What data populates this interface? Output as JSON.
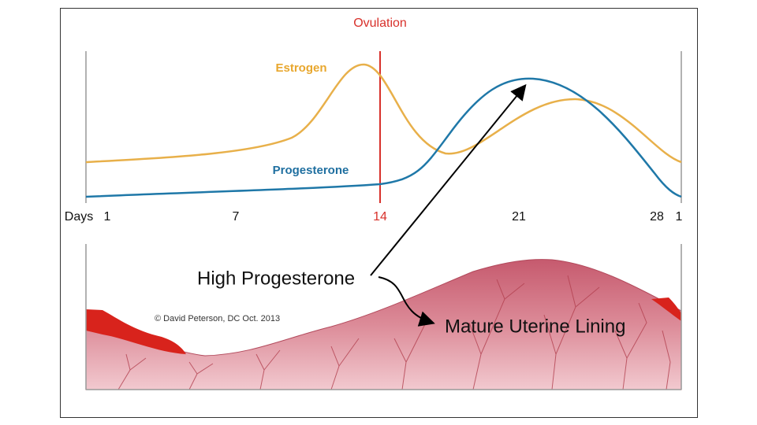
{
  "title": "Ovulation",
  "curves": {
    "estrogen": "Estrogen",
    "progesterone": "Progesterone"
  },
  "axis": {
    "label": "Days",
    "ticks": [
      "1",
      "7",
      "14",
      "21",
      "28",
      "1"
    ]
  },
  "annotations": {
    "high_progesterone": "High Progesterone",
    "mature_lining": "Mature Uterine Lining"
  },
  "credit": "© David Peterson, DC Oct. 2013"
}
